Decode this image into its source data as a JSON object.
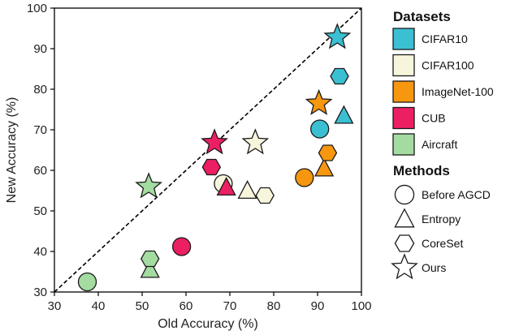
{
  "chart_data": {
    "type": "scatter",
    "title": "",
    "xlabel": "Old Accuracy (%)",
    "ylabel": "New Accuracy (%)",
    "xlim": [
      30,
      100
    ],
    "ylim": [
      30,
      100
    ],
    "xticks": [
      30,
      40,
      50,
      60,
      70,
      80,
      90,
      100
    ],
    "yticks": [
      30,
      40,
      50,
      60,
      70,
      80,
      90,
      100
    ],
    "diagonal": "y = x (dashed)",
    "legend_datasets_title": "Datasets",
    "legend_methods_title": "Methods",
    "datasets": [
      {
        "name": "CIFAR10",
        "color": "#3bbfd2"
      },
      {
        "name": "CIFAR100",
        "color": "#f7f6dc"
      },
      {
        "name": "ImageNet-100",
        "color": "#f7960f"
      },
      {
        "name": "CUB",
        "color": "#ec1f63"
      },
      {
        "name": "Aircraft",
        "color": "#a4dba1"
      }
    ],
    "methods": [
      {
        "name": "Before AGCD",
        "shape": "circle"
      },
      {
        "name": "Entropy",
        "shape": "triangle"
      },
      {
        "name": "CoreSet",
        "shape": "hexagon"
      },
      {
        "name": "Ours",
        "shape": "star"
      }
    ],
    "points": [
      {
        "dataset": "CIFAR10",
        "method": "Before AGCD",
        "x": 90.5,
        "y": 70.2
      },
      {
        "dataset": "CIFAR10",
        "method": "Entropy",
        "x": 96.0,
        "y": 73.5
      },
      {
        "dataset": "CIFAR10",
        "method": "CoreSet",
        "x": 95.0,
        "y": 83.2
      },
      {
        "dataset": "CIFAR10",
        "method": "Ours",
        "x": 94.5,
        "y": 92.8
      },
      {
        "dataset": "CIFAR100",
        "method": "Before AGCD",
        "x": 68.5,
        "y": 56.7
      },
      {
        "dataset": "CIFAR100",
        "method": "Entropy",
        "x": 74.0,
        "y": 55.0
      },
      {
        "dataset": "CIFAR100",
        "method": "CoreSet",
        "x": 78.0,
        "y": 53.8
      },
      {
        "dataset": "CIFAR100",
        "method": "Ours",
        "x": 75.8,
        "y": 66.8
      },
      {
        "dataset": "ImageNet-100",
        "method": "Before AGCD",
        "x": 87.0,
        "y": 58.2
      },
      {
        "dataset": "ImageNet-100",
        "method": "Entropy",
        "x": 91.5,
        "y": 60.5
      },
      {
        "dataset": "ImageNet-100",
        "method": "CoreSet",
        "x": 92.3,
        "y": 64.3
      },
      {
        "dataset": "ImageNet-100",
        "method": "Ours",
        "x": 90.3,
        "y": 76.5
      },
      {
        "dataset": "CUB",
        "method": "Before AGCD",
        "x": 59.0,
        "y": 41.2
      },
      {
        "dataset": "CUB",
        "method": "Entropy",
        "x": 69.2,
        "y": 55.8
      },
      {
        "dataset": "CUB",
        "method": "CoreSet",
        "x": 65.8,
        "y": 60.8
      },
      {
        "dataset": "CUB",
        "method": "Ours",
        "x": 66.5,
        "y": 66.8
      },
      {
        "dataset": "Aircraft",
        "method": "Before AGCD",
        "x": 37.5,
        "y": 32.5
      },
      {
        "dataset": "Aircraft",
        "method": "Entropy",
        "x": 51.8,
        "y": 35.5
      },
      {
        "dataset": "Aircraft",
        "method": "CoreSet",
        "x": 51.8,
        "y": 38.2
      },
      {
        "dataset": "Aircraft",
        "method": "Ours",
        "x": 51.5,
        "y": 56.0
      }
    ]
  }
}
